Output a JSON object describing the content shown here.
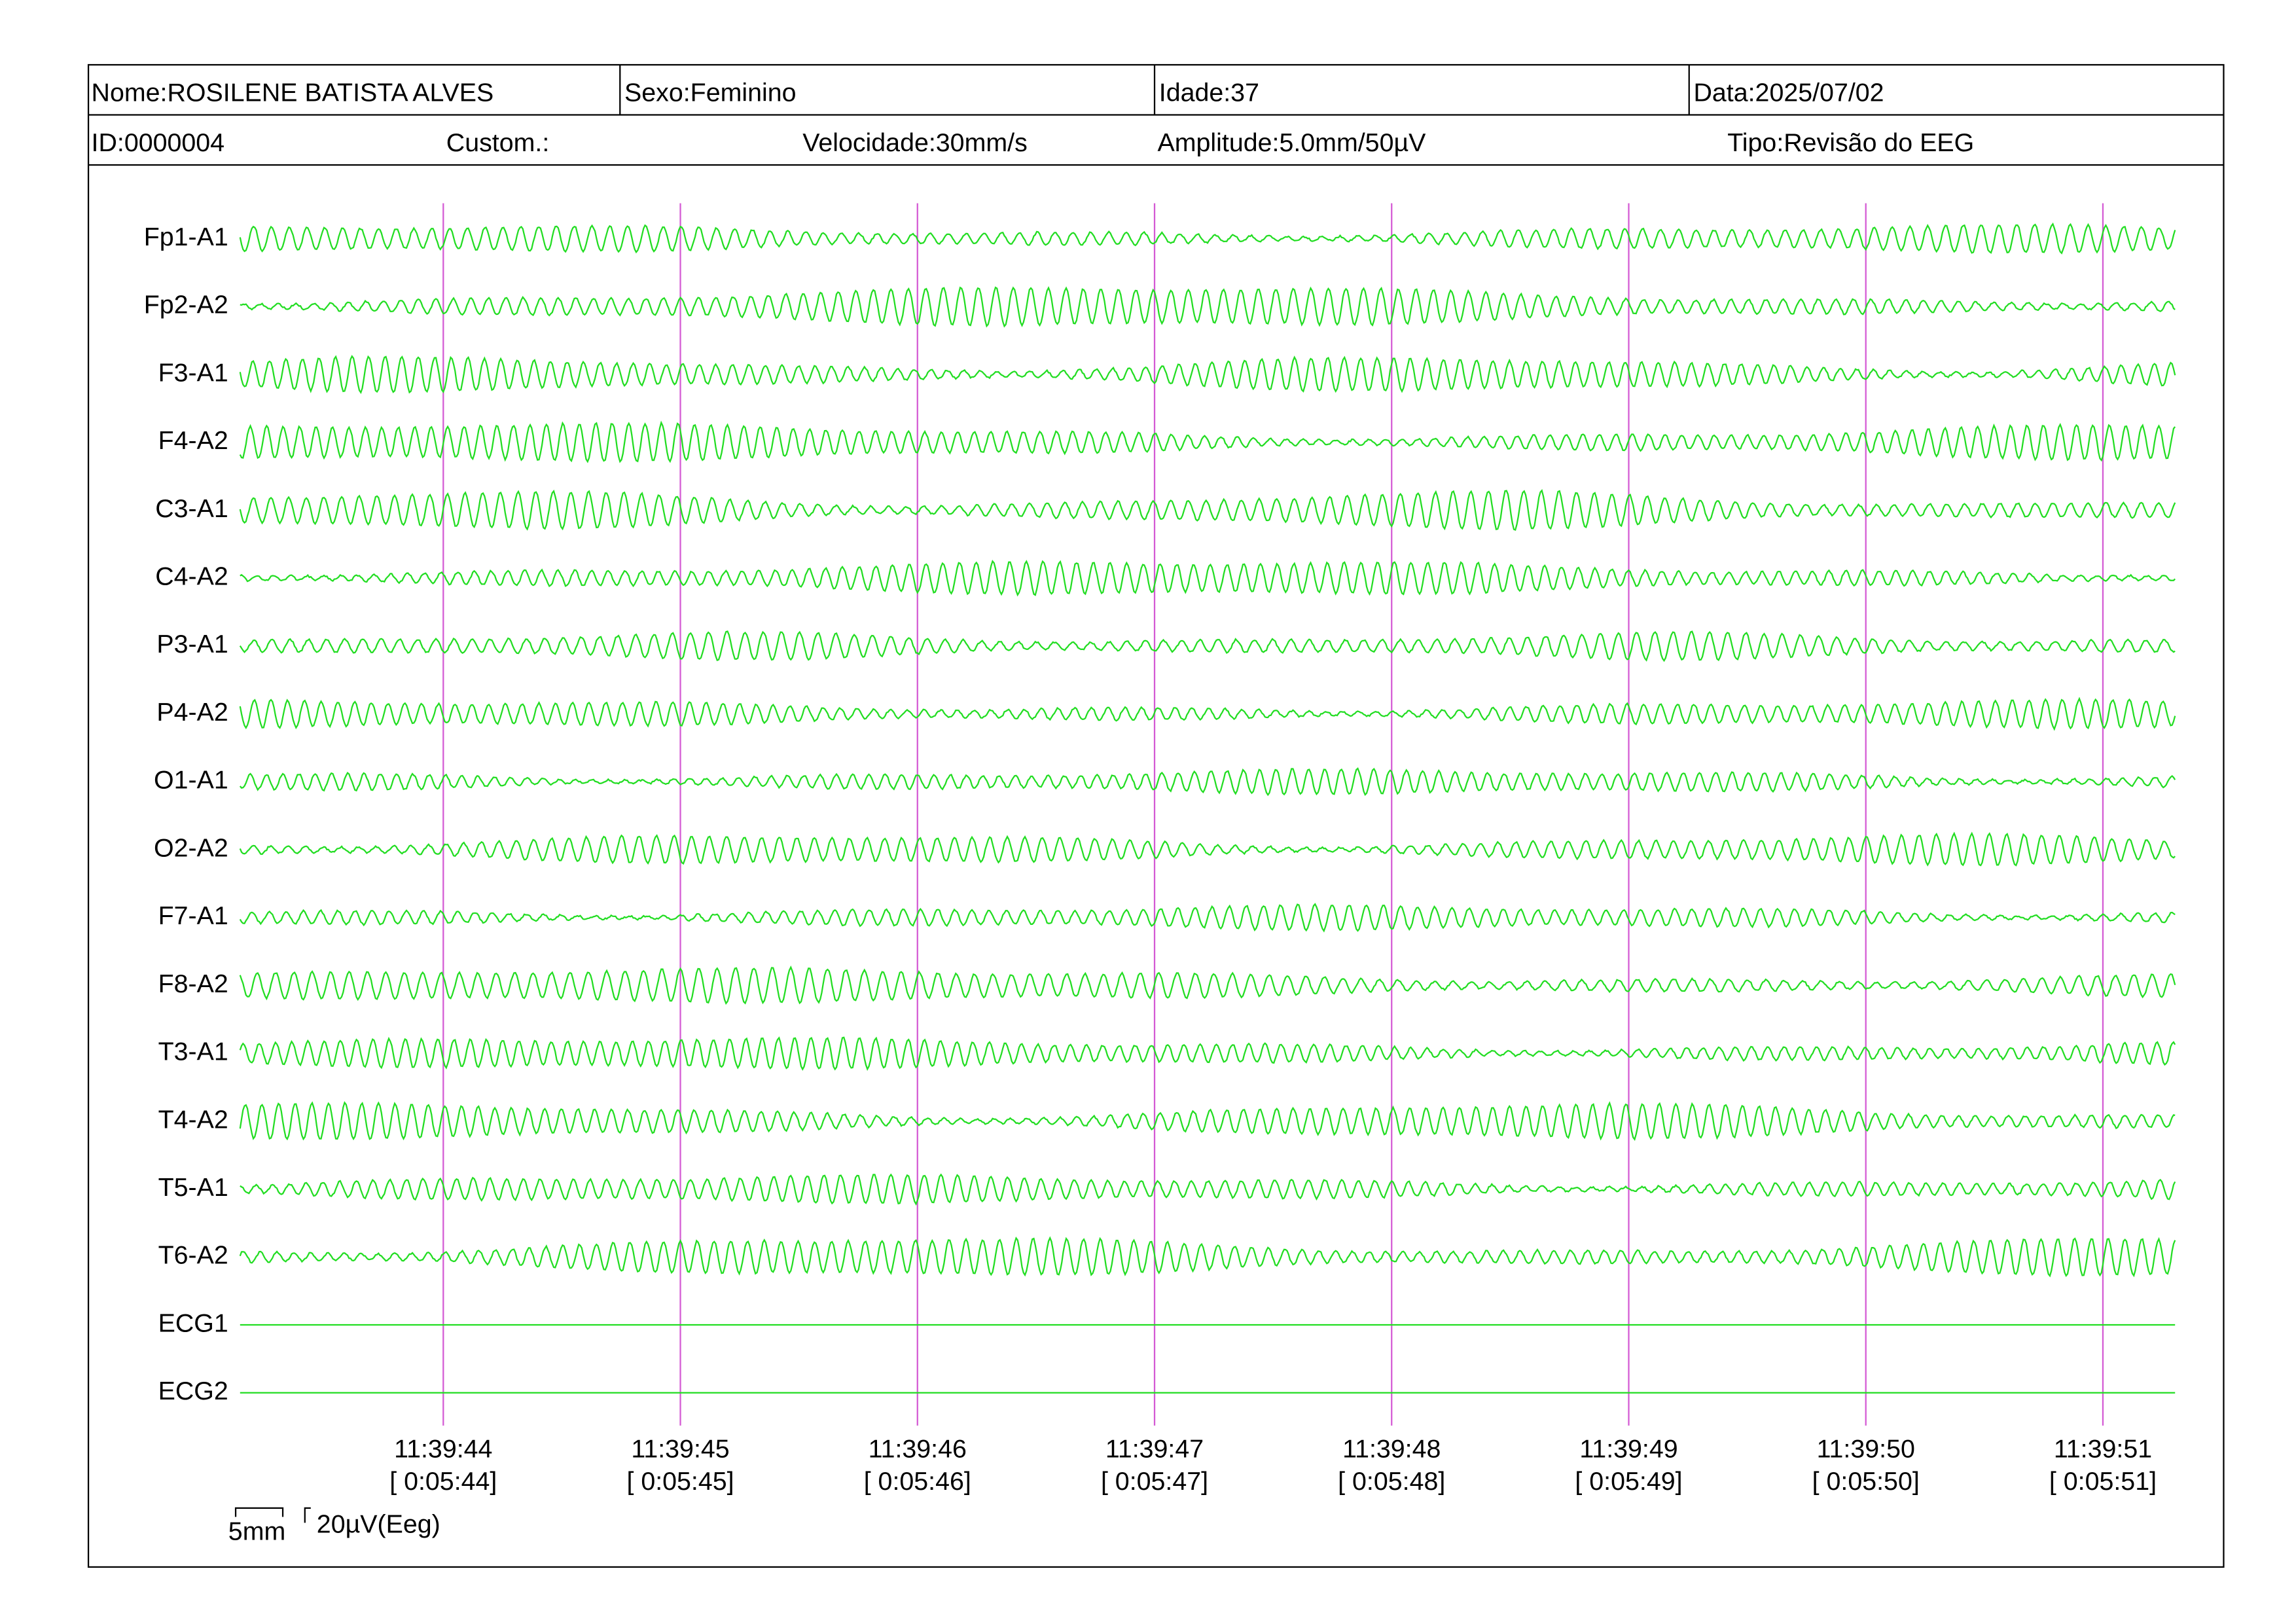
{
  "header": {
    "name": "Nome:ROSILENE BATISTA ALVES",
    "sex": "Sexo:Feminino",
    "age": "Idade:37",
    "date": "Data:2025/07/02",
    "id": "ID:0000004",
    "custom": "Custom.:",
    "speed": "Velocidade:30mm/s",
    "amplitude": "Amplitude:5.0mm/50µV",
    "type": "Tipo:Revisão do EEG"
  },
  "channels": [
    "Fp1-A1",
    "Fp2-A2",
    "F3-A1",
    "F4-A2",
    "C3-A1",
    "C4-A2",
    "P3-A1",
    "P4-A2",
    "O1-A1",
    "O2-A2",
    "F7-A1",
    "F8-A2",
    "T3-A1",
    "T4-A2",
    "T5-A1",
    "T6-A2",
    "ECG1",
    "ECG2"
  ],
  "time_marks": [
    {
      "clock": "11:39:44",
      "elapsed": "[ 0:05:44]"
    },
    {
      "clock": "11:39:45",
      "elapsed": "[ 0:05:45]"
    },
    {
      "clock": "11:39:46",
      "elapsed": "[ 0:05:46]"
    },
    {
      "clock": "11:39:47",
      "elapsed": "[ 0:05:47]"
    },
    {
      "clock": "11:39:48",
      "elapsed": "[ 0:05:48]"
    },
    {
      "clock": "11:39:49",
      "elapsed": "[ 0:05:49]"
    },
    {
      "clock": "11:39:50",
      "elapsed": "[ 0:05:50]"
    },
    {
      "clock": "11:39:51",
      "elapsed": "[ 0:05:51]"
    }
  ],
  "scale": {
    "length": "5mm",
    "voltage": "20µV(Eeg)"
  }
}
